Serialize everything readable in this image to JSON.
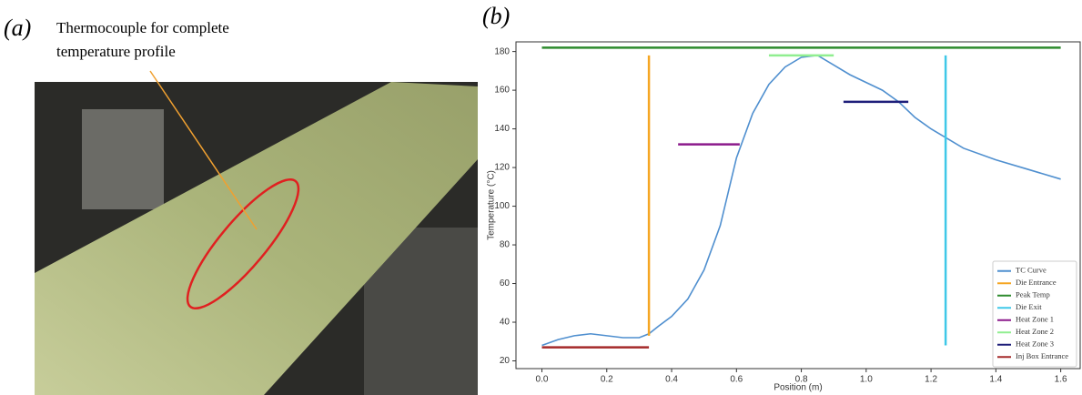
{
  "panel_a": {
    "label": "(a)",
    "annotation_lines": [
      "Thermocouple for complete",
      "temperature profile"
    ]
  },
  "panel_b_label": "(b)",
  "chart_data": {
    "type": "line",
    "xlabel": "Position (m)",
    "ylabel": "Temperature (°C)",
    "xlim": [
      -0.08,
      1.66
    ],
    "ylim": [
      16,
      185
    ],
    "xticks": [
      {
        "value": 0,
        "label": "0.0"
      },
      {
        "value": 0.2,
        "label": "0.2"
      },
      {
        "value": 0.4,
        "label": "0.4"
      },
      {
        "value": 0.6,
        "label": "0.6"
      },
      {
        "value": 0.8,
        "label": "0.8"
      },
      {
        "value": 1,
        "label": "1.0"
      },
      {
        "value": 1.2,
        "label": "1.2"
      },
      {
        "value": 1.4,
        "label": "1.4"
      },
      {
        "value": 1.6,
        "label": "1.6"
      }
    ],
    "yticks": [
      20,
      40,
      60,
      80,
      100,
      120,
      140,
      160,
      180
    ],
    "legend": "lower right",
    "series": [
      {
        "name": "TC Curve",
        "color": "#4f8fcf",
        "x": [
          0,
          0.05,
          0.1,
          0.15,
          0.2,
          0.25,
          0.3,
          0.33,
          0.36,
          0.4,
          0.45,
          0.5,
          0.55,
          0.6,
          0.65,
          0.7,
          0.75,
          0.8,
          0.85,
          0.9,
          0.95,
          1.0,
          1.05,
          1.1,
          1.15,
          1.2,
          1.25,
          1.3,
          1.4,
          1.5,
          1.6
        ],
        "values": [
          28,
          31,
          33,
          34,
          33,
          32,
          32,
          34,
          38,
          43,
          52,
          67,
          90,
          125,
          148,
          163,
          172,
          177,
          178,
          173,
          168,
          164,
          160,
          154,
          146,
          140,
          135,
          130,
          124,
          119,
          114
        ]
      },
      {
        "name": "Die Entrance",
        "color": "#f5a623",
        "x": [
          0.33,
          0.33
        ],
        "values": [
          33,
          178
        ]
      },
      {
        "name": "Peak Temp",
        "color": "#2e8b2e",
        "x": [
          0,
          1.6
        ],
        "values": [
          182,
          182
        ]
      },
      {
        "name": "Die Exit",
        "color": "#3fc8e8",
        "x": [
          1.245,
          1.245
        ],
        "values": [
          28,
          178
        ]
      },
      {
        "name": "Heat Zone 1",
        "color": "#8b1a8b",
        "x": [
          0.42,
          0.61
        ],
        "values": [
          132,
          132
        ]
      },
      {
        "name": "Heat Zone 2",
        "color": "#90ee90",
        "x": [
          0.7,
          0.9
        ],
        "values": [
          178,
          178
        ]
      },
      {
        "name": "Heat Zone 3",
        "color": "#1f1f7a",
        "x": [
          0.93,
          1.13
        ],
        "values": [
          154,
          154
        ]
      },
      {
        "name": "Inj Box Entrance",
        "color": "#a52a2a",
        "x": [
          0,
          0.33
        ],
        "values": [
          27,
          27
        ]
      }
    ]
  }
}
